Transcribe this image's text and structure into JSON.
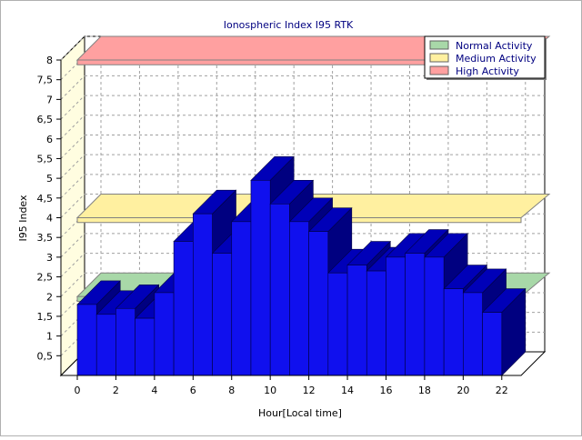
{
  "chart_data": {
    "type": "bar",
    "title": "Ionospheric Index I95 RTK",
    "xlabel": "Hour[Local time]",
    "ylabel": "I95 Index",
    "ylim": [
      0,
      8
    ],
    "x_tick_labels": [
      "0",
      "2",
      "4",
      "6",
      "8",
      "10",
      "12",
      "14",
      "16",
      "18",
      "20",
      "22"
    ],
    "y_tick_labels": [
      "0,5",
      "1",
      "1,5",
      "2",
      "2,5",
      "3",
      "3,5",
      "4",
      "4,5",
      "5",
      "5,5",
      "6",
      "6,5",
      "7",
      "7,5",
      "8"
    ],
    "categories": [
      0,
      1,
      2,
      3,
      4,
      5,
      6,
      7,
      8,
      9,
      10,
      11,
      12,
      13,
      14,
      15,
      16,
      17,
      18,
      19,
      20,
      21,
      22
    ],
    "values": [
      1.8,
      1.55,
      1.7,
      1.45,
      2.1,
      3.4,
      4.1,
      3.1,
      3.9,
      4.95,
      4.35,
      3.9,
      3.65,
      2.6,
      2.8,
      2.65,
      3.0,
      3.1,
      3.0,
      2.2,
      2.1,
      1.6,
      0
    ],
    "grid": true,
    "legend_position": "top-right",
    "bands": [
      {
        "label": "Normal Activity",
        "value": 2,
        "color": "#a8d8a8"
      },
      {
        "label": "Medium Activity",
        "value": 4,
        "color": "#fff0a0"
      },
      {
        "label": "High Activity",
        "value": 8,
        "color": "#ffa0a0"
      }
    ],
    "colors": {
      "bar_front": "#1010ee",
      "bar_side": "#000080",
      "bar_top": "#0000b8",
      "wall": "#fffde0"
    }
  }
}
